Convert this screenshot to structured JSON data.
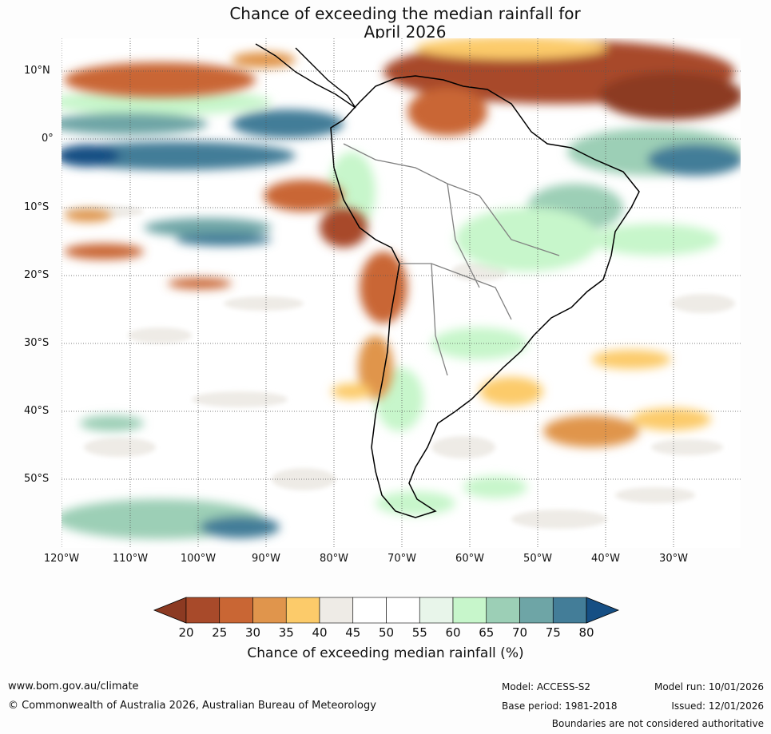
{
  "title": {
    "line1": "Chance of exceeding the median rainfall for",
    "line2": "April 2026"
  },
  "map": {
    "region": "South America",
    "lat_labels": [
      "10°N",
      "0°",
      "10°S",
      "20°S",
      "30°S",
      "40°S",
      "50°S"
    ],
    "lon_labels": [
      "120°W",
      "110°W",
      "100°W",
      "90°W",
      "80°W",
      "70°W",
      "60°W",
      "50°W",
      "40°W",
      "30°W"
    ]
  },
  "colorbar": {
    "ticks": [
      "20",
      "25",
      "30",
      "35",
      "40",
      "45",
      "50",
      "55",
      "60",
      "65",
      "70",
      "75",
      "80"
    ],
    "colors": [
      "#a84a2a",
      "#c96634",
      "#e0954c",
      "#fccb6a",
      "#eeebe6",
      "#ffffff",
      "#ffffff",
      "#e8f5ea",
      "#c7f6cb",
      "#9ccfb6",
      "#6ea5a6",
      "#437d98"
    ],
    "low_color": "#8c3a22",
    "high_color": "#164f84",
    "label": "Chance of exceeding median rainfall (%)"
  },
  "footer": {
    "website": "www.bom.gov.au/climate",
    "copyright": "© Commonwealth of Australia 2026, Australian Bureau of Meteorology",
    "model": "Model: ACCESS-S2",
    "base_period": "Base period: 1981-2018",
    "model_run": "Model run: 10/01/2026",
    "issued": "Issued: 12/01/2026",
    "disclaimer": "Boundaries are not considered authoritative"
  }
}
